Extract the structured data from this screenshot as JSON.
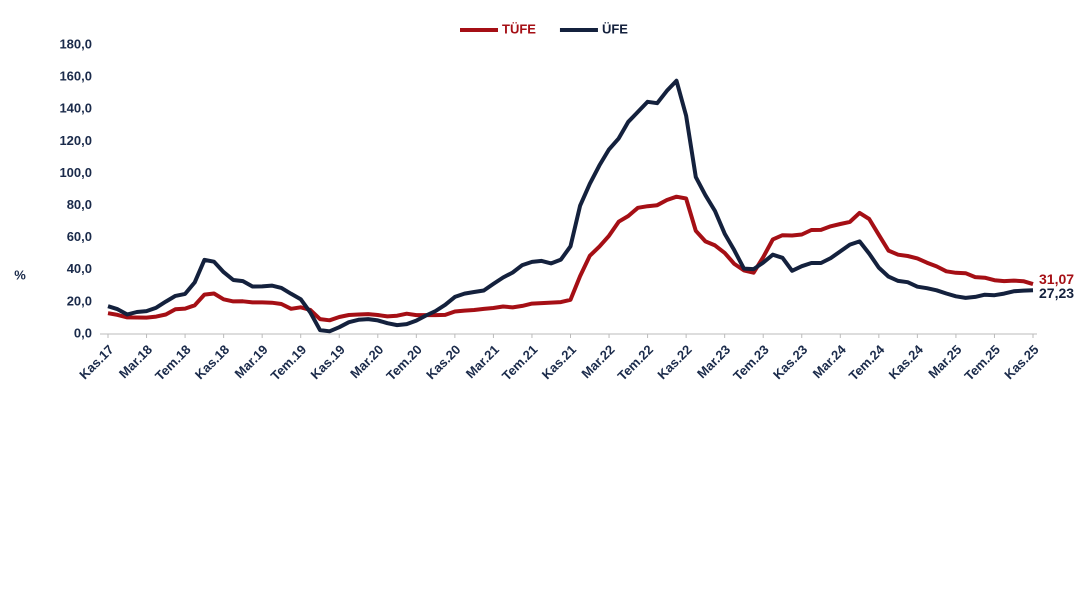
{
  "chart_data": {
    "type": "line",
    "y_label": "%",
    "categories": [
      "Kas.17",
      null,
      null,
      null,
      "Mar.18",
      null,
      null,
      null,
      "Tem.18",
      null,
      null,
      null,
      "Kas.18",
      null,
      null,
      null,
      "Mar.19",
      null,
      null,
      null,
      "Tem.19",
      null,
      null,
      null,
      "Kas.19",
      null,
      null,
      null,
      "Mar.20",
      null,
      null,
      null,
      "Tem.20",
      null,
      null,
      null,
      "Kas.20",
      null,
      null,
      null,
      "Mar.21",
      null,
      null,
      null,
      "Tem.21",
      null,
      null,
      null,
      "Kas.21",
      null,
      null,
      null,
      "Mar.22",
      null,
      null,
      null,
      "Tem.22",
      null,
      null,
      null,
      "Kas.22",
      null,
      null,
      null,
      "Mar.23",
      null,
      null,
      null,
      "Tem.23",
      null,
      null,
      null,
      "Kas.23",
      null,
      null,
      null,
      "Mar.24",
      null,
      null,
      null,
      "Tem.24",
      null,
      null,
      null,
      "Kas.24",
      null,
      null,
      null,
      "Mar.25",
      null,
      null,
      null,
      "Tem.25",
      null,
      null,
      null,
      "Kas.25"
    ],
    "series": [
      {
        "name": "TÜFE",
        "color": "#a50f15",
        "values": [
          12.98,
          11.92,
          10.35,
          10.26,
          10.23,
          10.85,
          12.15,
          15.39,
          15.85,
          17.9,
          24.52,
          25.24,
          21.62,
          20.3,
          20.35,
          19.67,
          19.71,
          19.5,
          18.71,
          15.72,
          16.65,
          15.01,
          9.26,
          8.55,
          10.56,
          11.84,
          12.15,
          12.37,
          11.86,
          10.94,
          11.39,
          12.62,
          11.76,
          11.77,
          11.75,
          11.89,
          14.03,
          14.6,
          14.97,
          15.61,
          16.19,
          17.14,
          16.59,
          17.53,
          18.95,
          19.25,
          19.58,
          19.89,
          21.31,
          36.08,
          48.69,
          54.44,
          61.14,
          69.97,
          73.5,
          78.62,
          79.6,
          80.21,
          83.45,
          85.51,
          84.39,
          64.27,
          57.68,
          55.18,
          50.51,
          43.68,
          39.59,
          38.21,
          47.83,
          58.94,
          61.53,
          61.36,
          61.98,
          64.77,
          64.86,
          67.07,
          68.5,
          69.8,
          75.45,
          71.6,
          61.78,
          51.97,
          49.38,
          48.58,
          47.09,
          44.38,
          42.12,
          39.05,
          38.1,
          37.86,
          35.41,
          35.05,
          33.52,
          32.95,
          33.29,
          32.87,
          31.07
        ],
        "value_labels": [
          null,
          null,
          null,
          null,
          null,
          null,
          null,
          null,
          null,
          null,
          null,
          null,
          null,
          null,
          null,
          null,
          null,
          null,
          null,
          null,
          null,
          null,
          null,
          null,
          null,
          null,
          null,
          null,
          null,
          null,
          null,
          null,
          null,
          null,
          null,
          null,
          null,
          null,
          null,
          null,
          null,
          null,
          null,
          null,
          null,
          null,
          null,
          null,
          null,
          null,
          null,
          null,
          null,
          null,
          null,
          null,
          null,
          null,
          null,
          null,
          null,
          null,
          null,
          null,
          null,
          null,
          null,
          null,
          null,
          null,
          null,
          null,
          null,
          null,
          null,
          null,
          null,
          null,
          null,
          null,
          null,
          null,
          null,
          null,
          null,
          null,
          null,
          null,
          null,
          null,
          null,
          null,
          null,
          null,
          null,
          null,
          "31,07"
        ]
      },
      {
        "name": "ÜFE",
        "color": "#14213d",
        "values": [
          17.3,
          15.47,
          12.14,
          13.71,
          14.28,
          16.37,
          20.16,
          23.71,
          25.0,
          32.13,
          46.15,
          45.01,
          38.54,
          33.64,
          32.93,
          29.58,
          29.64,
          30.12,
          28.71,
          25.04,
          21.66,
          13.45,
          2.45,
          1.7,
          4.26,
          7.36,
          8.84,
          9.26,
          8.5,
          6.71,
          5.53,
          6.17,
          8.33,
          11.53,
          14.33,
          18.2,
          23.11,
          25.15,
          26.16,
          27.09,
          31.2,
          35.17,
          38.33,
          42.89,
          44.92,
          45.52,
          43.96,
          46.31,
          54.62,
          79.89,
          93.53,
          105.01,
          114.97,
          121.82,
          132.16,
          138.31,
          144.61,
          143.75,
          151.5,
          157.69,
          136.02,
          97.72,
          86.46,
          76.61,
          62.44,
          52.11,
          40.76,
          40.42,
          44.5,
          49.41,
          47.44,
          39.39,
          42.25,
          44.22,
          44.2,
          47.29,
          51.47,
          55.66,
          57.68,
          50.09,
          41.37,
          35.75,
          33.09,
          32.24,
          29.47,
          28.52,
          27.2,
          25.21,
          23.5,
          22.5,
          23.13,
          24.45,
          24.19,
          25.16,
          26.59,
          27.0,
          27.23
        ],
        "value_labels": [
          null,
          null,
          null,
          null,
          null,
          null,
          null,
          null,
          null,
          null,
          null,
          null,
          null,
          null,
          null,
          null,
          null,
          null,
          null,
          null,
          null,
          null,
          null,
          null,
          null,
          null,
          null,
          null,
          null,
          null,
          null,
          null,
          null,
          null,
          null,
          null,
          null,
          null,
          null,
          null,
          null,
          null,
          null,
          null,
          null,
          null,
          null,
          null,
          null,
          null,
          null,
          null,
          null,
          null,
          null,
          null,
          null,
          null,
          null,
          null,
          null,
          null,
          null,
          null,
          null,
          null,
          null,
          null,
          null,
          null,
          null,
          null,
          null,
          null,
          null,
          null,
          null,
          null,
          null,
          null,
          null,
          null,
          null,
          null,
          null,
          null,
          null,
          null,
          null,
          null,
          null,
          null,
          null,
          null,
          null,
          null,
          "27,23"
        ]
      }
    ],
    "ylim": [
      0,
      180
    ],
    "yticks": [
      {
        "value": 0,
        "label": "0,0"
      },
      {
        "value": 20,
        "label": "20,0"
      },
      {
        "value": 40,
        "label": "40,0"
      },
      {
        "value": 60,
        "label": "60,0"
      },
      {
        "value": 80,
        "label": "80,0"
      },
      {
        "value": 100,
        "label": "100,0"
      },
      {
        "value": 120,
        "label": "120,0"
      },
      {
        "value": 140,
        "label": "140,0"
      },
      {
        "value": 160,
        "label": "160,0"
      },
      {
        "value": 180,
        "label": "180,0"
      }
    ],
    "grid": false,
    "legend": "top"
  }
}
